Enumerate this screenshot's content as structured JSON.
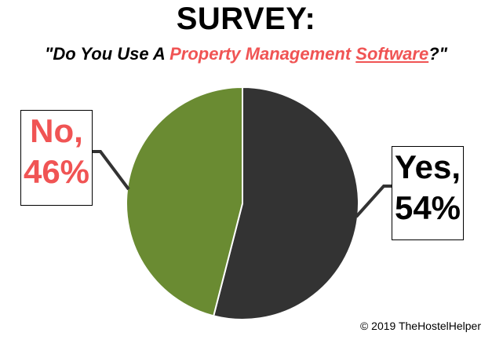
{
  "title": "SURVEY:",
  "subtitle": {
    "part1": "\"Do You Use A ",
    "part2": "Property Management ",
    "part3": "Software",
    "part4": "?\""
  },
  "chart_data": {
    "type": "pie",
    "categories": [
      "Yes",
      "No"
    ],
    "values": [
      54,
      46
    ],
    "unit": "%",
    "colors": [
      "#333333",
      "#6a8b32"
    ],
    "labels": [
      {
        "category": "Yes",
        "line1": "Yes,",
        "line2": "54%",
        "color": "#000000"
      },
      {
        "category": "No",
        "line1": "No,",
        "line2": "46%",
        "color": "#f05454"
      }
    ],
    "start_angle": "12 o'clock",
    "direction": "clockwise"
  },
  "copyright": "© 2019 TheHostelHelper",
  "colors": {
    "accent": "#f05454",
    "yes": "#333333",
    "no": "#6a8b32"
  }
}
